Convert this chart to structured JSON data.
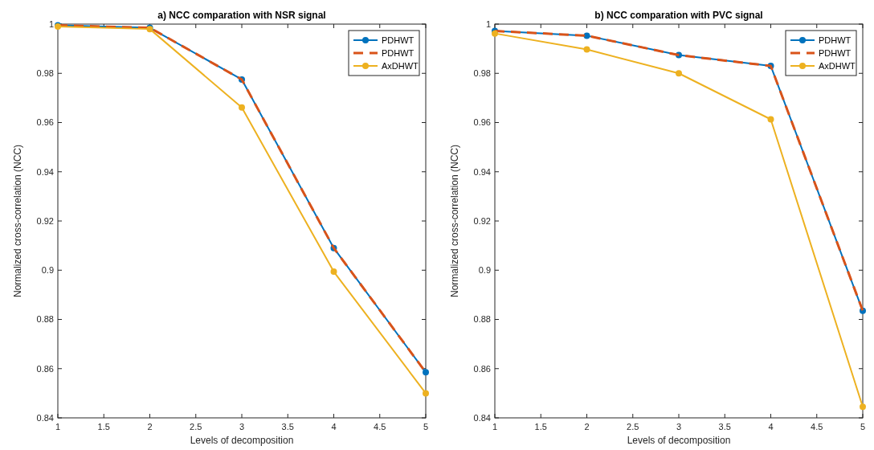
{
  "chart_data": [
    {
      "type": "line",
      "title": "a) NCC comparation with NSR signal",
      "xlabel": "Levels of decomposition",
      "ylabel": "Normalized cross-correlation (NCC)",
      "x": [
        1,
        2,
        3,
        4,
        5
      ],
      "xlim": [
        1,
        5
      ],
      "xticks": [
        1,
        1.5,
        2,
        2.5,
        3,
        3.5,
        4,
        4.5,
        5
      ],
      "ylim": [
        0.84,
        1
      ],
      "yticks": [
        0.84,
        0.86,
        0.88,
        0.9,
        0.92,
        0.94,
        0.96,
        0.98,
        1
      ],
      "legend": "top right",
      "series": [
        {
          "name": "PDHWT",
          "color": "#0072bd",
          "values": [
            0.9995,
            0.9985,
            0.9775,
            0.909,
            0.8585
          ],
          "marker": "circle",
          "line_style": "solid"
        },
        {
          "name": "PDHWT",
          "color": "#d95319",
          "values": [
            0.9995,
            0.9985,
            0.9775,
            0.909,
            0.8585
          ],
          "marker": "none",
          "line_style": "dashed"
        },
        {
          "name": "AxDHWT",
          "color": "#edb120",
          "values": [
            0.999,
            0.998,
            0.9661,
            0.8994,
            0.85
          ],
          "marker": "circle",
          "line_style": "solid"
        }
      ]
    },
    {
      "type": "line",
      "title": "b) NCC comparation with PVC signal",
      "xlabel": "Levels of decomposition",
      "ylabel": "Normalized cross-correlation (NCC)",
      "x": [
        1,
        2,
        3,
        4,
        5
      ],
      "xlim": [
        1,
        5
      ],
      "xticks": [
        1,
        1.5,
        2,
        2.5,
        3,
        3.5,
        4,
        4.5,
        5
      ],
      "ylim": [
        0.84,
        1
      ],
      "yticks": [
        0.84,
        0.86,
        0.88,
        0.9,
        0.92,
        0.94,
        0.96,
        0.98,
        1
      ],
      "legend": "top right",
      "series": [
        {
          "name": "PDHWT",
          "color": "#0072bd",
          "values": [
            0.9972,
            0.9953,
            0.9874,
            0.983,
            0.8835
          ],
          "marker": "circle",
          "line_style": "solid"
        },
        {
          "name": "PDHWT",
          "color": "#d95319",
          "values": [
            0.9972,
            0.9953,
            0.9874,
            0.983,
            0.8835
          ],
          "marker": "none",
          "line_style": "dashed"
        },
        {
          "name": "AxDHWT",
          "color": "#edb120",
          "values": [
            0.9962,
            0.9897,
            0.98,
            0.9613,
            0.8445
          ],
          "marker": "circle",
          "line_style": "solid"
        }
      ]
    }
  ]
}
